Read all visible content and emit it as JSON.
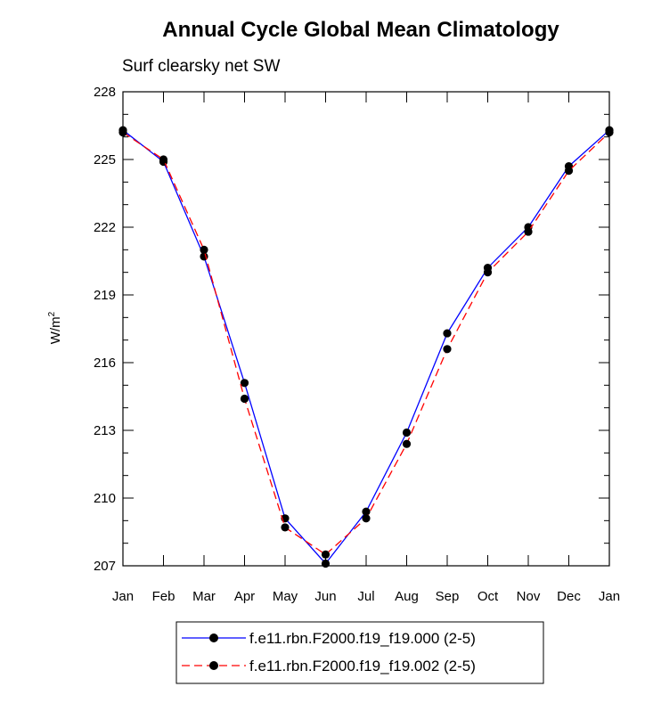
{
  "chart_data": {
    "type": "line",
    "title": "Annual Cycle Global Mean Climatology",
    "subtitle": "Surf clearsky net SW",
    "ylabel": "W/m",
    "ylabel_superscript": "2",
    "xlabel": "",
    "categories": [
      "Jan",
      "Feb",
      "Mar",
      "Apr",
      "May",
      "Jun",
      "Jul",
      "Aug",
      "Sep",
      "Oct",
      "Nov",
      "Dec",
      "Jan"
    ],
    "ylim": [
      207,
      228
    ],
    "yticks": [
      "207",
      "210",
      "213",
      "216",
      "219",
      "222",
      "225",
      "228"
    ],
    "series": [
      {
        "name": "f.e11.rbn.F2000.f19_f19.000 (2-5)",
        "color": "#0000ff",
        "dash": "solid",
        "values": [
          226.3,
          224.9,
          220.7,
          215.1,
          209.1,
          207.1,
          209.4,
          212.9,
          217.3,
          220.2,
          222.0,
          224.7,
          226.3
        ]
      },
      {
        "name": "f.e11.rbn.F2000.f19_f19.002 (2-5)",
        "color": "#ff0000",
        "dash": "dashed",
        "values": [
          226.2,
          225.0,
          221.0,
          214.4,
          208.7,
          207.5,
          209.1,
          212.4,
          216.6,
          220.0,
          221.8,
          224.5,
          226.2
        ]
      }
    ],
    "legend_position": "bottom"
  }
}
